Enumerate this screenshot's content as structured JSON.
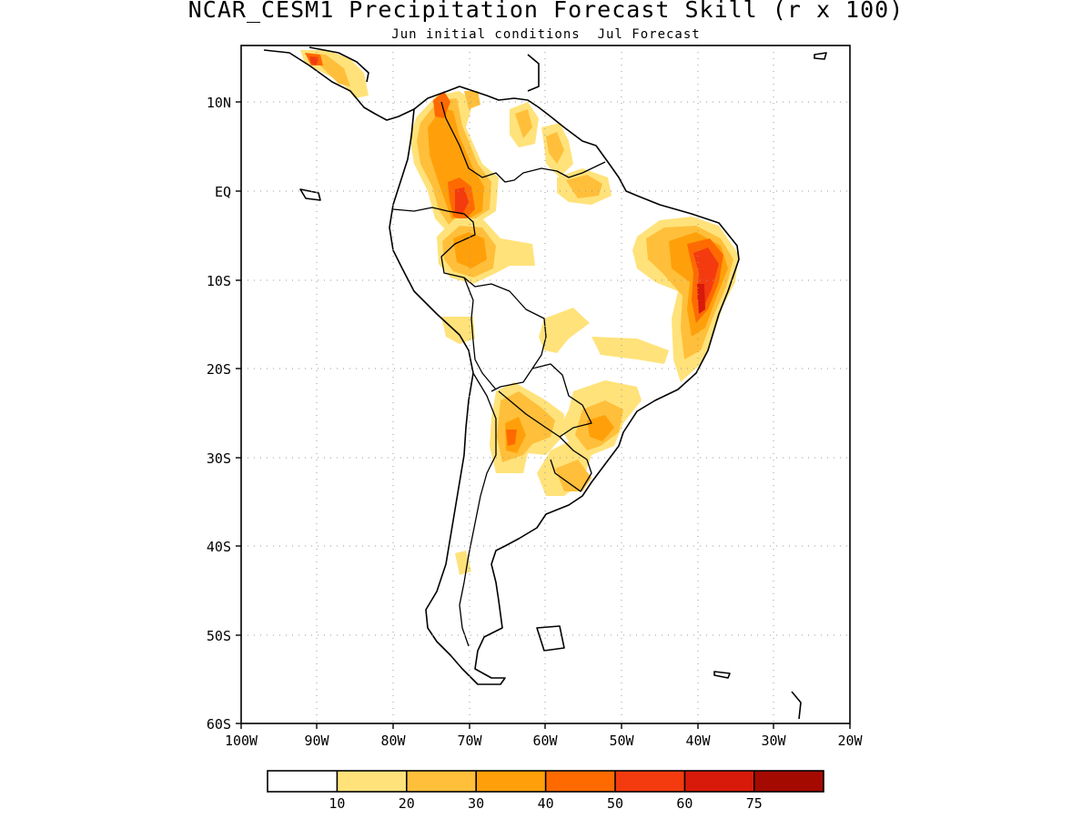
{
  "title": "NCAR_CESM1 Precipitation Forecast Skill (r x 100)",
  "subtitle": "Jun initial conditions  Jul Forecast",
  "map": {
    "lon_range": [
      -100,
      -20
    ],
    "lat_range": [
      -60,
      15
    ],
    "grid": "dotted",
    "lat_ticks": [
      {
        "value": 10,
        "label": "10N"
      },
      {
        "value": 0,
        "label": "EQ"
      },
      {
        "value": -10,
        "label": "10S"
      },
      {
        "value": -20,
        "label": "20S"
      },
      {
        "value": -30,
        "label": "30S"
      },
      {
        "value": -40,
        "label": "40S"
      },
      {
        "value": -50,
        "label": "50S"
      },
      {
        "value": -60,
        "label": "60S"
      }
    ],
    "lon_ticks": [
      {
        "value": -100,
        "label": "100W"
      },
      {
        "value": -90,
        "label": "90W"
      },
      {
        "value": -80,
        "label": "80W"
      },
      {
        "value": -70,
        "label": "70W"
      },
      {
        "value": -60,
        "label": "60W"
      },
      {
        "value": -50,
        "label": "50W"
      },
      {
        "value": -40,
        "label": "40W"
      },
      {
        "value": -30,
        "label": "30W"
      },
      {
        "value": -20,
        "label": "20W"
      }
    ]
  },
  "colorbar": {
    "bins": [
      {
        "color": "#ffffff"
      },
      {
        "color": "#ffe27a"
      },
      {
        "color": "#ffbf3a"
      },
      {
        "color": "#ffa00a"
      },
      {
        "color": "#ff6a00"
      },
      {
        "color": "#f43b10"
      },
      {
        "color": "#d81a0a"
      },
      {
        "color": "#a50a00"
      }
    ],
    "labels": [
      "10",
      "20",
      "30",
      "40",
      "50",
      "60",
      "75"
    ]
  },
  "skill_regions": [
    {
      "name": "northwest-south-america",
      "lon": -72.5,
      "lat": 2,
      "levels": [
        20,
        30,
        40,
        60
      ]
    },
    {
      "name": "western-amazon",
      "lon": -69,
      "lat": -6,
      "levels": [
        20,
        30,
        40
      ]
    },
    {
      "name": "guiana-highlands",
      "lon": -55,
      "lat": 0,
      "levels": [
        20,
        30
      ]
    },
    {
      "name": "venezuela-coast",
      "lon": -62,
      "lat": 7,
      "levels": [
        20,
        30
      ]
    },
    {
      "name": "northeast-brazil",
      "lon": -39.5,
      "lat": -10,
      "levels": [
        20,
        30,
        40,
        50,
        60
      ]
    },
    {
      "name": "central-america",
      "lon": -84,
      "lat": 13,
      "levels": [
        20,
        30,
        50,
        60
      ]
    },
    {
      "name": "central-brazil",
      "lon": -58,
      "lat": -16,
      "levels": [
        10,
        20
      ]
    },
    {
      "name": "northern-argentina-paraguay",
      "lon": -62,
      "lat": -26,
      "levels": [
        20,
        30,
        40
      ]
    },
    {
      "name": "southern-brazil-uruguay",
      "lon": -55,
      "lat": -29,
      "levels": [
        20,
        30,
        40
      ]
    },
    {
      "name": "patagonia",
      "lon": -71.5,
      "lat": -42.5,
      "levels": [
        10
      ]
    }
  ]
}
